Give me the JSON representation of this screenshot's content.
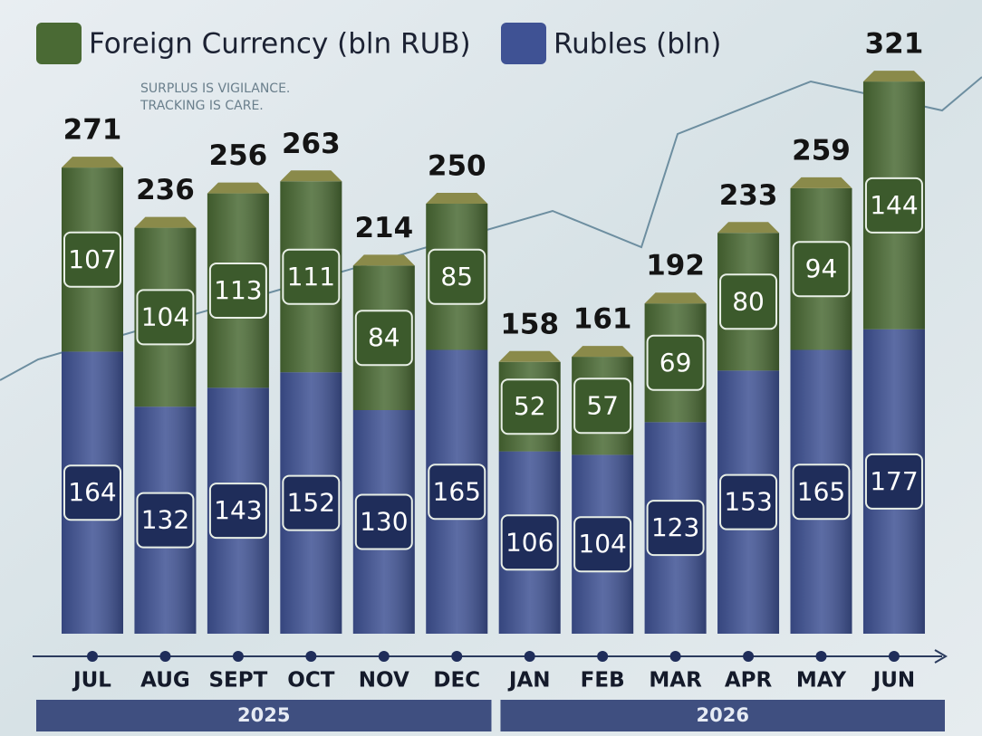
{
  "chart_data": {
    "type": "bar",
    "stacked": true,
    "annotation": [
      "SURPLUS IS VIGILANCE.",
      "TRACKING IS CARE."
    ],
    "categories": [
      "JUL",
      "AUG",
      "SEPT",
      "OCT",
      "NOV",
      "DEC",
      "JAN",
      "FEB",
      "MAR",
      "APR",
      "MAY",
      "JUN"
    ],
    "groups": [
      {
        "label": "2025",
        "span": 6
      },
      {
        "label": "2026",
        "span": 6
      }
    ],
    "series": [
      {
        "name": "Foreign Currency (bln RUB)",
        "color": "#4a6a34",
        "label_color": "#3c5a2c",
        "values": [
          107,
          104,
          113,
          111,
          84,
          85,
          52,
          57,
          69,
          80,
          94,
          144
        ]
      },
      {
        "name": "Rubles (bln)",
        "color": "#3f5294",
        "label_color": "#1f2d5a",
        "values": [
          164,
          132,
          143,
          152,
          130,
          165,
          106,
          104,
          123,
          153,
          165,
          177
        ]
      }
    ],
    "totals": [
      271,
      236,
      256,
      263,
      214,
      250,
      158,
      161,
      192,
      233,
      259,
      321
    ]
  }
}
